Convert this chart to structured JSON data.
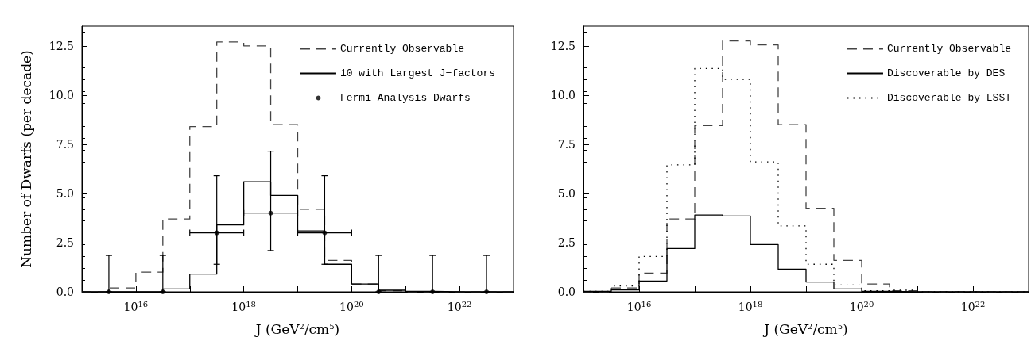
{
  "chart_data": [
    {
      "type": "histogram",
      "xlabel": "J (GeV$^{2}$/cm$^{5}$)",
      "ylabel": "Number of Dwarfs (per decade)",
      "log": "x",
      "legend": "top right",
      "bins": [
        1000000000000000.0,
        3162000000000000.0,
        1e+16,
        3.162e+16,
        1e+17,
        3.162e+17,
        1e+18,
        3.162e+18,
        1e+19,
        3.162e+19,
        1e+20,
        3.162e+20,
        1e+21,
        3.162e+21,
        1e+22,
        3.162e+22,
        1e+23
      ],
      "xlim": [
        1000000000000000.0,
        1e+23
      ],
      "xticks": [
        {
          "value": 1000000000000000.0,
          "label": null
        },
        {
          "value": 1e+16,
          "label": "10$^{16}$"
        },
        {
          "value": 1e+17,
          "label": null
        },
        {
          "value": 1e+18,
          "label": "10$^{18}$"
        },
        {
          "value": 1e+19,
          "label": null
        },
        {
          "value": 1e+20,
          "label": "10$^{20}$"
        },
        {
          "value": 1e+21,
          "label": null
        },
        {
          "value": 1e+22,
          "label": "10$^{22}$"
        },
        {
          "value": 1e+23,
          "label": null
        }
      ],
      "ylim": [
        0,
        13.5
      ],
      "yticks": [
        {
          "value": 0,
          "label": "0.0"
        },
        {
          "value": 2.5,
          "label": "2.5"
        },
        {
          "value": 5,
          "label": "5.0"
        },
        {
          "value": 7.5,
          "label": "7.5"
        },
        {
          "value": 10,
          "label": "10.0"
        },
        {
          "value": 12.5,
          "label": "12.5"
        }
      ],
      "series": [
        {
          "name": "Currently Observable",
          "color": "#444444",
          "line_style": "dashed",
          "values": [
            0,
            0.2,
            1.0,
            3.7,
            8.4,
            12.7,
            12.5,
            8.5,
            4.2,
            1.6,
            0.4,
            0.05,
            0,
            0,
            0,
            0
          ]
        },
        {
          "name": "10 with Largest J−factors",
          "color": "#000000",
          "line_style": "solid",
          "values": [
            0,
            0,
            0,
            0.15,
            0.9,
            3.4,
            5.6,
            4.9,
            3.1,
            1.4,
            0.4,
            0.08,
            0.02,
            0,
            0,
            0
          ]
        },
        {
          "name": "Fermi Analysis Dwarfs",
          "type": "scatter",
          "color": "#000000",
          "marker": "circle",
          "x": [
            3.162e+17,
            3.162e+18,
            3.162e+19
          ],
          "values": [
            3,
            4,
            3
          ],
          "errors": [
            [
              1.4,
              5.9
            ],
            [
              2.1,
              7.15
            ],
            [
              1.4,
              5.9
            ]
          ],
          "xerrors": [
            [
              1e+17,
              1e+18
            ],
            [
              1e+18,
              1e+19
            ],
            [
              1e+19,
              1e+20
            ]
          ]
        },
        {
          "type": "scatter",
          "color": "#000000",
          "marker": "circle",
          "x": [
            3162000000000000.0,
            3.162e+16,
            3.162e+20,
            3.162e+21,
            3.162e+22
          ],
          "values": [
            0,
            0,
            0,
            0,
            0
          ],
          "errors": [
            [
              0,
              1.85
            ],
            [
              0,
              1.85
            ],
            [
              0,
              1.85
            ],
            [
              0,
              1.85
            ],
            [
              0,
              1.85
            ]
          ]
        }
      ]
    },
    {
      "type": "histogram",
      "xlabel": "J (GeV$^{2}$/cm$^{5}$)",
      "log": "x",
      "legend": "top right",
      "bins": [
        1000000000000000.0,
        3162000000000000.0,
        1e+16,
        3.162e+16,
        1e+17,
        3.162e+17,
        1e+18,
        3.162e+18,
        1e+19,
        3.162e+19,
        1e+20,
        3.162e+20,
        1e+21,
        3.162e+21,
        1e+22,
        3.162e+22,
        1e+23
      ],
      "xlim": [
        1000000000000000.0,
        1e+23
      ],
      "xticks": [
        {
          "value": 1000000000000000.0,
          "label": null
        },
        {
          "value": 1e+16,
          "label": "10$^{16}$"
        },
        {
          "value": 1e+17,
          "label": null
        },
        {
          "value": 1e+18,
          "label": "10$^{18}$"
        },
        {
          "value": 1e+19,
          "label": null
        },
        {
          "value": 1e+20,
          "label": "10$^{20}$"
        },
        {
          "value": 1e+21,
          "label": null
        },
        {
          "value": 1e+22,
          "label": "10$^{22}$"
        },
        {
          "value": 1e+23,
          "label": null
        }
      ],
      "ylim": [
        0,
        13.5
      ],
      "yticks": [
        {
          "value": 0,
          "label": "0.0"
        },
        {
          "value": 2.5,
          "label": "2.5"
        },
        {
          "value": 5,
          "label": "5.0"
        },
        {
          "value": 7.5,
          "label": "7.5"
        },
        {
          "value": 10,
          "label": "10.0"
        },
        {
          "value": 12.5,
          "label": "12.5"
        }
      ],
      "series": [
        {
          "name": "Currently Observable",
          "color": "#444444",
          "line_style": "dashed",
          "values": [
            0,
            0.2,
            0.95,
            3.7,
            8.45,
            12.75,
            12.55,
            8.5,
            4.25,
            1.6,
            0.4,
            0.05,
            0,
            0,
            0,
            0
          ]
        },
        {
          "name": "Discoverable by DES",
          "color": "#000000",
          "line_style": "solid",
          "values": [
            0.02,
            0.1,
            0.55,
            2.2,
            3.9,
            3.85,
            2.4,
            1.15,
            0.5,
            0.15,
            0.02,
            0,
            0,
            0,
            0,
            0
          ]
        },
        {
          "name": "Discoverable by LSST",
          "color": "#000000",
          "line_style": "dotted",
          "values": [
            0.02,
            0.3,
            1.8,
            6.45,
            11.35,
            10.8,
            6.6,
            3.35,
            1.4,
            0.35,
            0.05,
            0.08,
            0,
            0,
            0,
            0
          ]
        }
      ]
    }
  ]
}
